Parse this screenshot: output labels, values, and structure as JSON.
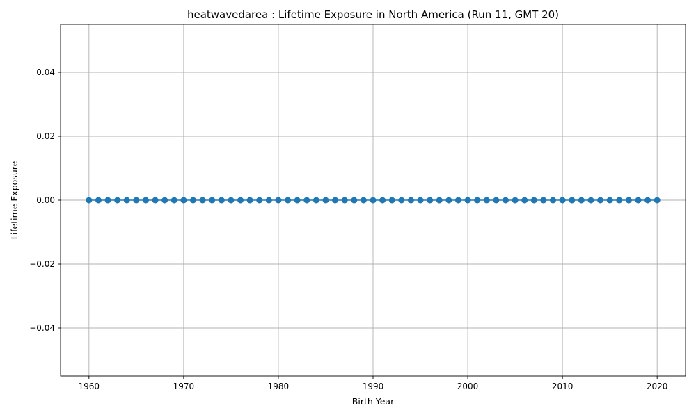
{
  "chart_data": {
    "type": "line",
    "title": "heatwavedarea : Lifetime Exposure in North America (Run 11, GMT 20)",
    "xlabel": "Birth Year",
    "ylabel": "Lifetime Exposure",
    "xlim": [
      1957,
      2023
    ],
    "ylim": [
      -0.055,
      0.055
    ],
    "x_ticks": [
      1960,
      1970,
      1980,
      1990,
      2000,
      2010,
      2020
    ],
    "y_ticks": [
      -0.04,
      -0.02,
      0.0,
      0.02,
      0.04
    ],
    "y_tick_labels": [
      "−0.04",
      "−0.02",
      "0.00",
      "0.02",
      "0.04"
    ],
    "grid": true,
    "series": [
      {
        "color": "#1f77b4",
        "marker": "circle",
        "x_start": 1960,
        "x_end": 2020,
        "x_step": 1,
        "constant_value": 0.0
      }
    ]
  }
}
